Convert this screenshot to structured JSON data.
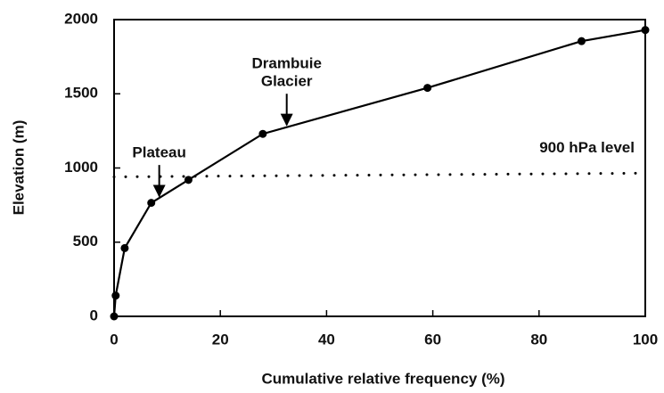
{
  "chart_data": {
    "type": "line",
    "x_label": "Cumulative relative frequency (%)",
    "y_label": "Elevation (m)",
    "x": [
      0,
      0.3,
      2,
      7,
      14,
      28,
      59,
      88,
      100
    ],
    "series": [
      {
        "color": "#000000",
        "values": [
          0,
          140,
          460,
          765,
          920,
          1230,
          1540,
          1855,
          1930
        ]
      }
    ],
    "xlim": [
      0,
      100
    ],
    "xticks": [
      0,
      20,
      40,
      60,
      80,
      100
    ],
    "ylim": [
      0,
      2000
    ],
    "yticks": [
      0,
      500,
      1000,
      1500,
      2000
    ],
    "reference_line": {
      "label": "900 hPa level",
      "x": [
        0,
        100
      ],
      "values": [
        940,
        965
      ]
    },
    "annotations": [
      {
        "lines": [
          "Plateau"
        ],
        "x": 8.5,
        "y": 810
      },
      {
        "lines": [
          "Drambuie",
          "Glacier"
        ],
        "x": 32.5,
        "y": 1290
      }
    ]
  }
}
